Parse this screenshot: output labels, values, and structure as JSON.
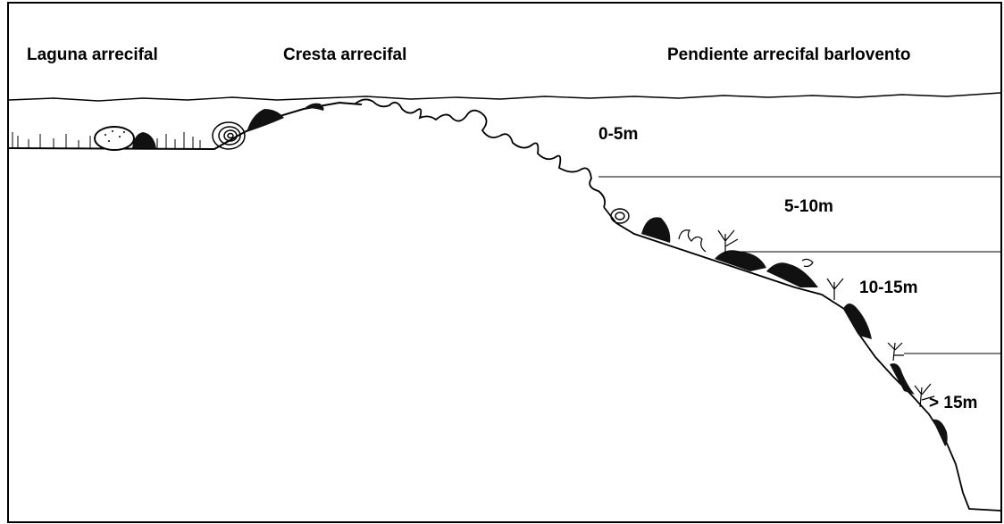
{
  "zones": {
    "lagoon": "Laguna arrecifal",
    "crest": "Cresta arrecifal",
    "slope": "Pendiente arrecifal barlovento"
  },
  "depth_bands": [
    "0-5m",
    "5-10m",
    "10-15m",
    "> 15m"
  ],
  "colors": {
    "line": "#000000",
    "fill_dark": "#111111",
    "background": "#ffffff"
  }
}
